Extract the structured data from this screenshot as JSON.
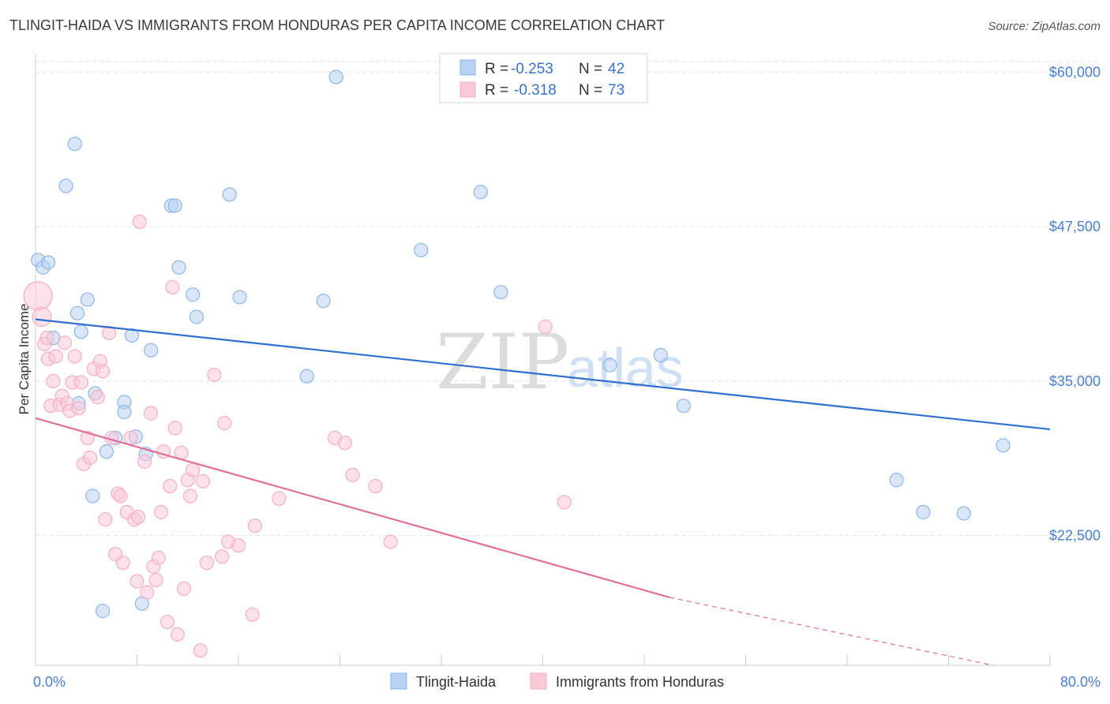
{
  "chart_data": {
    "type": "scatter",
    "title": "TLINGIT-HAIDA VS IMMIGRANTS FROM HONDURAS PER CAPITA INCOME CORRELATION CHART",
    "source": "Source: ZipAtlas.com",
    "xlabel": "",
    "ylabel": "Per Capita Income",
    "xlim": [
      0,
      80
    ],
    "ylim": [
      12000,
      61500
    ],
    "x_tick_labels": [
      "0.0%",
      "80.0%"
    ],
    "y_ticks": [
      {
        "value": 22500,
        "label": "$22,500"
      },
      {
        "value": 35000,
        "label": "$35,000"
      },
      {
        "value": 47500,
        "label": "$47,500"
      },
      {
        "value": 60000,
        "label": "$60,000"
      }
    ],
    "watermark": {
      "part1": "ZIP",
      "part2": "atlas"
    },
    "legend": {
      "r_label": "R = ",
      "n_label": "N = ",
      "entries": [
        {
          "name": "Tlingit-Haida",
          "r": "-0.253",
          "n": "42"
        },
        {
          "name": "Immigrants from Honduras",
          "r": "-0.318",
          "n": "73"
        }
      ]
    },
    "series": [
      {
        "name": "Tlingit-Haida",
        "color": "#8fb6e8",
        "line_color": "#2f6fd0",
        "trend": {
          "x0": 0,
          "y0": 40000,
          "x1": 80,
          "y1": 31100
        },
        "points": [
          [
            0.2,
            44800
          ],
          [
            0.6,
            44200
          ],
          [
            1.0,
            44600
          ],
          [
            1.4,
            38500
          ],
          [
            2.4,
            50800
          ],
          [
            3.1,
            54200
          ],
          [
            3.3,
            40500
          ],
          [
            3.4,
            33200
          ],
          [
            3.6,
            39000
          ],
          [
            4.1,
            41600
          ],
          [
            4.5,
            25700
          ],
          [
            4.7,
            34000
          ],
          [
            5.3,
            16400
          ],
          [
            5.6,
            29300
          ],
          [
            6.3,
            30400
          ],
          [
            7.0,
            33300
          ],
          [
            7.0,
            32500
          ],
          [
            7.6,
            38700
          ],
          [
            7.9,
            30500
          ],
          [
            8.4,
            17000
          ],
          [
            8.7,
            29100
          ],
          [
            9.1,
            37500
          ],
          [
            10.7,
            49200
          ],
          [
            11.0,
            49200
          ],
          [
            11.3,
            44200
          ],
          [
            12.4,
            42000
          ],
          [
            12.7,
            40200
          ],
          [
            15.3,
            50100
          ],
          [
            16.1,
            41800
          ],
          [
            21.4,
            35400
          ],
          [
            22.7,
            41500
          ],
          [
            23.7,
            59600
          ],
          [
            30.4,
            45600
          ],
          [
            35.1,
            50300
          ],
          [
            36.7,
            42200
          ],
          [
            45.3,
            36300
          ],
          [
            49.3,
            37100
          ],
          [
            51.1,
            33000
          ],
          [
            67.9,
            27000
          ],
          [
            70.0,
            24400
          ],
          [
            73.2,
            24300
          ],
          [
            76.3,
            29800
          ]
        ]
      },
      {
        "name": "Immigrants from Honduras",
        "color": "#f4aec5",
        "line_color": "#e0709a",
        "trend": {
          "x0": 0,
          "y0": 32000,
          "x1": 50,
          "y1": 17500
        },
        "trend_dashed": {
          "x0": 50,
          "y0": 17500,
          "x1": 75.5,
          "y1": 12000
        },
        "points": [
          [
            0.2,
            41900
          ],
          [
            0.5,
            40200
          ],
          [
            0.7,
            38000
          ],
          [
            0.9,
            38500
          ],
          [
            1.0,
            36800
          ],
          [
            1.2,
            33000
          ],
          [
            1.4,
            35000
          ],
          [
            1.6,
            37000
          ],
          [
            1.9,
            33100
          ],
          [
            2.1,
            33800
          ],
          [
            2.3,
            38100
          ],
          [
            2.5,
            33200
          ],
          [
            2.7,
            32600
          ],
          [
            2.9,
            34900
          ],
          [
            3.1,
            37000
          ],
          [
            3.4,
            32800
          ],
          [
            3.6,
            34900
          ],
          [
            3.8,
            28300
          ],
          [
            4.1,
            30400
          ],
          [
            4.3,
            28800
          ],
          [
            4.6,
            36000
          ],
          [
            4.9,
            33700
          ],
          [
            5.1,
            36600
          ],
          [
            5.3,
            35800
          ],
          [
            5.5,
            23800
          ],
          [
            5.8,
            38900
          ],
          [
            6.0,
            30400
          ],
          [
            6.3,
            21000
          ],
          [
            6.5,
            25900
          ],
          [
            6.7,
            25700
          ],
          [
            6.9,
            20300
          ],
          [
            7.2,
            24400
          ],
          [
            7.5,
            30400
          ],
          [
            7.8,
            23800
          ],
          [
            8.0,
            18800
          ],
          [
            8.2,
            47900
          ],
          [
            8.6,
            28500
          ],
          [
            8.8,
            17900
          ],
          [
            9.1,
            32400
          ],
          [
            9.3,
            20000
          ],
          [
            9.5,
            18900
          ],
          [
            9.7,
            20700
          ],
          [
            9.9,
            24400
          ],
          [
            10.1,
            29300
          ],
          [
            10.4,
            15500
          ],
          [
            10.6,
            26500
          ],
          [
            10.8,
            42600
          ],
          [
            11.0,
            31200
          ],
          [
            11.2,
            14500
          ],
          [
            11.5,
            29200
          ],
          [
            11.7,
            18200
          ],
          [
            12.0,
            27000
          ],
          [
            12.2,
            25700
          ],
          [
            12.4,
            27800
          ],
          [
            13.0,
            13200
          ],
          [
            13.2,
            26900
          ],
          [
            13.5,
            20300
          ],
          [
            14.1,
            35500
          ],
          [
            14.7,
            20800
          ],
          [
            14.9,
            31600
          ],
          [
            15.2,
            22000
          ],
          [
            16.0,
            21700
          ],
          [
            17.1,
            16100
          ],
          [
            17.3,
            23300
          ],
          [
            19.2,
            25500
          ],
          [
            23.6,
            30400
          ],
          [
            24.4,
            30000
          ],
          [
            25.0,
            27400
          ],
          [
            26.8,
            26500
          ],
          [
            28.0,
            22000
          ],
          [
            40.2,
            39400
          ],
          [
            41.7,
            25200
          ],
          [
            8.1,
            24000
          ]
        ]
      }
    ]
  }
}
